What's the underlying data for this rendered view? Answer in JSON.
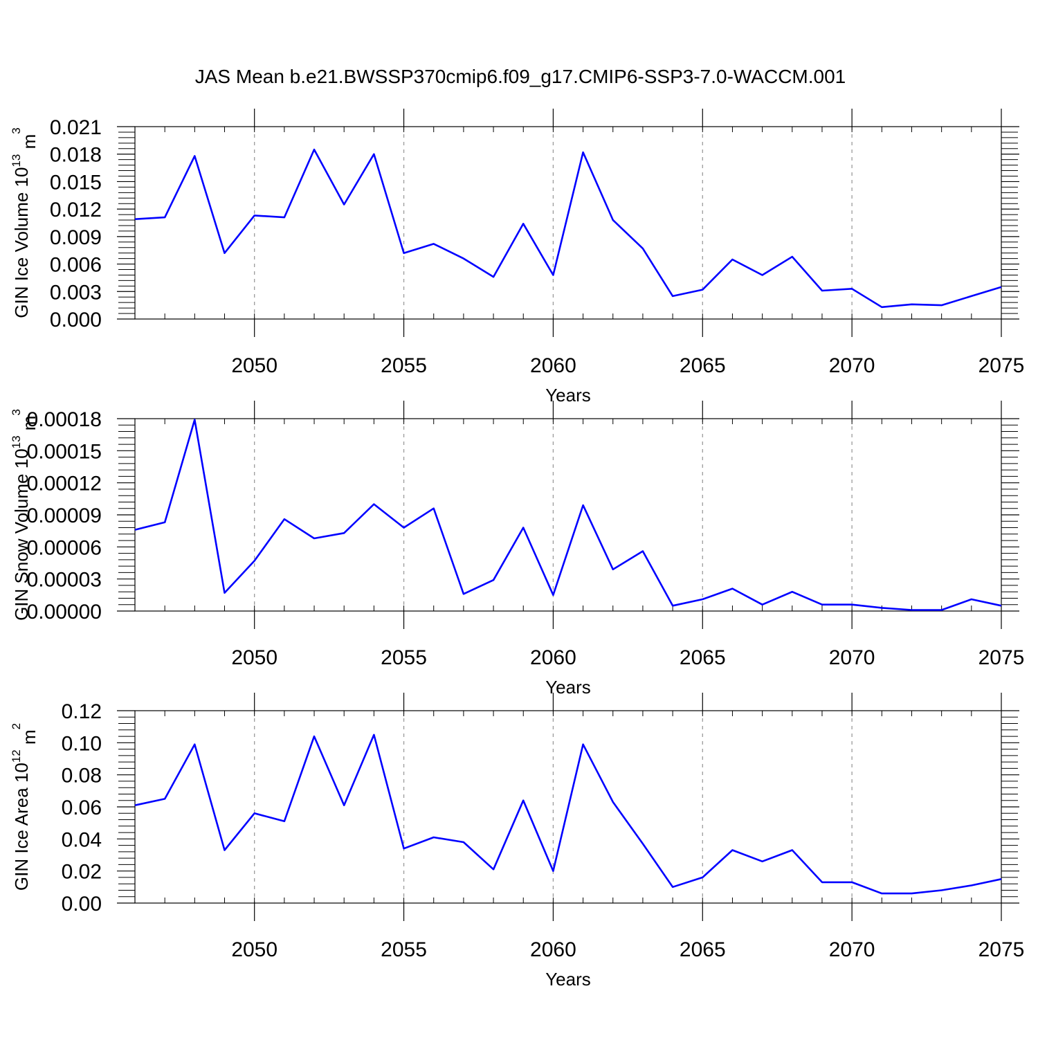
{
  "title": "JAS Mean b.e21.BWSSP370cmip6.f09_g17.CMIP6-SSP3-7.0-WACCM.001",
  "colors": {
    "series": "#0000ff",
    "grid": "#9a9a9a",
    "axes": "#000000"
  },
  "chart_data": [
    {
      "type": "line",
      "ylabel": "GIN Ice Volume 10",
      "ylabel_sup": "13",
      "ylabel_unit": " m",
      "ylabel_unit_sup": "3",
      "xlabel": "Years",
      "xlim": [
        2046,
        2075
      ],
      "ylim": [
        0.0,
        0.021
      ],
      "xticks": [
        2050,
        2055,
        2060,
        2065,
        2070,
        2075
      ],
      "xtick_labels": [
        "2050",
        "2055",
        "2060",
        "2065",
        "2070",
        "2075"
      ],
      "yticks": [
        0.0,
        0.003,
        0.006,
        0.009,
        0.012,
        0.015,
        0.018,
        0.021
      ],
      "ytick_labels": [
        "0.000",
        "0.003",
        "0.006",
        "0.009",
        "0.012",
        "0.015",
        "0.018",
        "0.021"
      ],
      "grid": "dashed vertical at major x ticks",
      "x": [
        2046,
        2047,
        2048,
        2049,
        2050,
        2051,
        2052,
        2053,
        2054,
        2055,
        2056,
        2057,
        2058,
        2059,
        2060,
        2061,
        2062,
        2063,
        2064,
        2065,
        2066,
        2067,
        2068,
        2069,
        2070,
        2071,
        2072,
        2073,
        2074,
        2075
      ],
      "values": [
        0.0109,
        0.0111,
        0.0178,
        0.0072,
        0.0113,
        0.0111,
        0.0185,
        0.0125,
        0.018,
        0.0072,
        0.0082,
        0.0066,
        0.0046,
        0.0104,
        0.0048,
        0.0182,
        0.0108,
        0.0077,
        0.0025,
        0.0032,
        0.0065,
        0.0048,
        0.0068,
        0.0031,
        0.0033,
        0.0013,
        0.0016,
        0.0015,
        0.0025,
        0.0035
      ]
    },
    {
      "type": "line",
      "ylabel": "GIN Snow Volume 10",
      "ylabel_sup": "13",
      "ylabel_unit": " m",
      "ylabel_unit_sup": "3",
      "xlabel": "Years",
      "xlim": [
        2046,
        2075
      ],
      "ylim": [
        0.0,
        0.00018
      ],
      "xticks": [
        2050,
        2055,
        2060,
        2065,
        2070,
        2075
      ],
      "xtick_labels": [
        "2050",
        "2055",
        "2060",
        "2065",
        "2070",
        "2075"
      ],
      "yticks": [
        0.0,
        3e-05,
        6e-05,
        9e-05,
        0.00012,
        0.00015,
        0.00018
      ],
      "ytick_labels": [
        "0.00000",
        "0.00003",
        "0.00006",
        "0.00009",
        "0.00012",
        "0.00015",
        "0.00018"
      ],
      "grid": "dashed vertical at major x ticks",
      "x": [
        2046,
        2047,
        2048,
        2049,
        2050,
        2051,
        2052,
        2053,
        2054,
        2055,
        2056,
        2057,
        2058,
        2059,
        2060,
        2061,
        2062,
        2063,
        2064,
        2065,
        2066,
        2067,
        2068,
        2069,
        2070,
        2071,
        2072,
        2073,
        2074,
        2075
      ],
      "values": [
        7.6e-05,
        8.3e-05,
        0.000179,
        1.7e-05,
        4.7e-05,
        8.6e-05,
        6.8e-05,
        7.3e-05,
        0.0001,
        7.8e-05,
        9.6e-05,
        1.6e-05,
        2.9e-05,
        7.8e-05,
        1.5e-05,
        9.9e-05,
        3.9e-05,
        5.6e-05,
        5e-06,
        1.1e-05,
        2.1e-05,
        6e-06,
        1.8e-05,
        6e-06,
        6e-06,
        3e-06,
        1e-06,
        1e-06,
        1.1e-05,
        5e-06
      ]
    },
    {
      "type": "line",
      "ylabel": "GIN Ice Area 10",
      "ylabel_sup": "12",
      "ylabel_unit": " m",
      "ylabel_unit_sup": "2",
      "xlabel": "Years",
      "xlim": [
        2046,
        2075
      ],
      "ylim": [
        0.0,
        0.12
      ],
      "xticks": [
        2050,
        2055,
        2060,
        2065,
        2070,
        2075
      ],
      "xtick_labels": [
        "2050",
        "2055",
        "2060",
        "2065",
        "2070",
        "2075"
      ],
      "yticks": [
        0.0,
        0.02,
        0.04,
        0.06,
        0.08,
        0.1,
        0.12
      ],
      "ytick_labels": [
        "0.00",
        "0.02",
        "0.04",
        "0.06",
        "0.08",
        "0.10",
        "0.12"
      ],
      "grid": "dashed vertical at major x ticks",
      "x": [
        2046,
        2047,
        2048,
        2049,
        2050,
        2051,
        2052,
        2053,
        2054,
        2055,
        2056,
        2057,
        2058,
        2059,
        2060,
        2061,
        2062,
        2063,
        2064,
        2065,
        2066,
        2067,
        2068,
        2069,
        2070,
        2071,
        2072,
        2073,
        2074,
        2075
      ],
      "values": [
        0.061,
        0.065,
        0.099,
        0.033,
        0.056,
        0.051,
        0.104,
        0.061,
        0.105,
        0.034,
        0.041,
        0.038,
        0.021,
        0.064,
        0.02,
        0.099,
        0.063,
        0.037,
        0.01,
        0.016,
        0.033,
        0.026,
        0.033,
        0.013,
        0.013,
        0.006,
        0.006,
        0.008,
        0.011,
        0.015
      ]
    }
  ]
}
